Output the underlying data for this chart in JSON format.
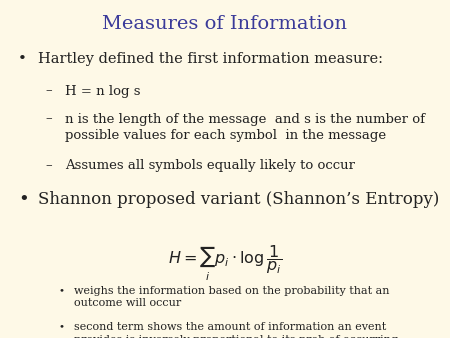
{
  "title": "Measures of Information",
  "title_color": "#3a3a99",
  "title_fontsize": 14,
  "background_color": "#fef9e7",
  "text_color": "#222222",
  "bullet1_text": "Hartley defined the first information measure:",
  "bullet1_fontsize": 10.5,
  "sub1_1": "H = n log s",
  "sub1_2": "n is the length of the message  and s is the number of\npossible values for each symbol  in the message",
  "sub1_3": "Assumes all symbols equally likely to occur",
  "sub_fontsize": 9.5,
  "bullet2_text": "Shannon proposed variant (Shannon’s Entropy)",
  "bullet2_fontsize": 12,
  "sub2_1": "weighs the information based on the probability that an\noutcome will occur",
  "sub2_2": "second term shows the amount of information an event\nprovides is inversely proportional to its prob of occurring",
  "sub2_fontsize": 8.0,
  "bullet_color": "#222222",
  "sub_color": "#4a4a00",
  "dash_color": "#555500"
}
